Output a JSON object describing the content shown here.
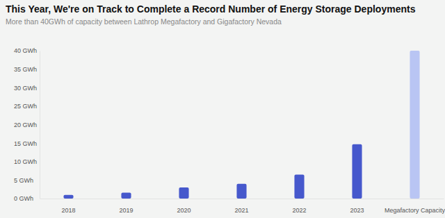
{
  "chart_data": {
    "type": "bar",
    "title": "This Year, We're on Track to Complete a Record Number of Energy Storage Deployments",
    "subtitle": "More than 40GWh of capacity between Lathrop Megafactory and Gigafactory Nevada",
    "categories": [
      "2018",
      "2019",
      "2020",
      "2021",
      "2022",
      "2023",
      "Megafactory Capacity"
    ],
    "values": [
      1.0,
      1.6,
      3.0,
      4.0,
      6.5,
      14.7,
      40
    ],
    "colors": [
      "#4658cc",
      "#4658cc",
      "#4658cc",
      "#4658cc",
      "#4658cc",
      "#4658cc",
      "#b9c5f3"
    ],
    "ylim": [
      0,
      40
    ],
    "yticks": [
      {
        "value": 0,
        "label": "0 GWh"
      },
      {
        "value": 5,
        "label": "5 GWh"
      },
      {
        "value": 10,
        "label": "10 GWh"
      },
      {
        "value": 15,
        "label": "15 GWh"
      },
      {
        "value": 20,
        "label": "20 GWh"
      },
      {
        "value": 25,
        "label": "25 GWh"
      },
      {
        "value": 30,
        "label": "30 GWh"
      },
      {
        "value": 35,
        "label": "35 GWh"
      },
      {
        "value": 40,
        "label": "40 GWh"
      }
    ],
    "grid": false
  }
}
